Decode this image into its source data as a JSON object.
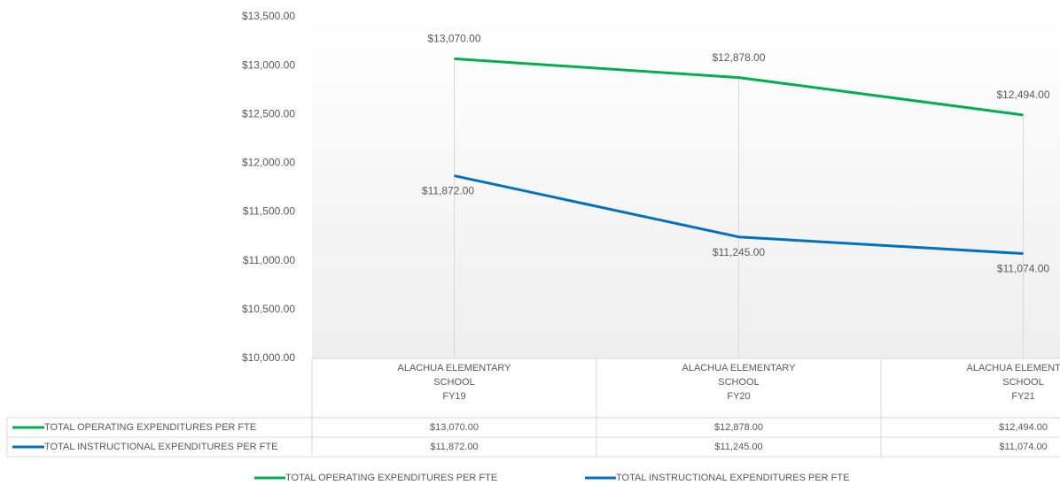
{
  "chart_data": {
    "type": "line",
    "categories": [
      "FY19",
      "FY20",
      "FY21"
    ],
    "category_groups": [
      "ALACHUA ELEMENTARY SCHOOL",
      "ALACHUA ELEMENTARY SCHOOL",
      "ALACHUA ELEMENTARY SCHOOL"
    ],
    "series": [
      {
        "name": "TOTAL OPERATING EXPENDITURES PER FTE",
        "color": "#00b050",
        "values": [
          13070,
          12878,
          12494
        ],
        "value_labels": [
          "$13,070.00",
          "$12,878.00",
          "$12,494.00"
        ]
      },
      {
        "name": "TOTAL INSTRUCTIONAL EXPENDITURES PER FTE",
        "color": "#0070c0",
        "values": [
          11872,
          11245,
          11074
        ],
        "value_labels": [
          "$11,872.00",
          "$11,245.00",
          "$11,074.00"
        ]
      }
    ],
    "ylim": [
      10000,
      13500
    ],
    "yticks": [
      {
        "value": 10000,
        "label": "$10,000.00"
      },
      {
        "value": 10500,
        "label": "$10,500.00"
      },
      {
        "value": 11000,
        "label": "$11,000.00"
      },
      {
        "value": 11500,
        "label": "$11,500.00"
      },
      {
        "value": 12000,
        "label": "$12,000.00"
      },
      {
        "value": 12500,
        "label": "$12,500.00"
      },
      {
        "value": 13000,
        "label": "$13,000.00"
      },
      {
        "value": 13500,
        "label": "$13,500.00"
      }
    ],
    "data_table": true,
    "legend": "bottom"
  }
}
